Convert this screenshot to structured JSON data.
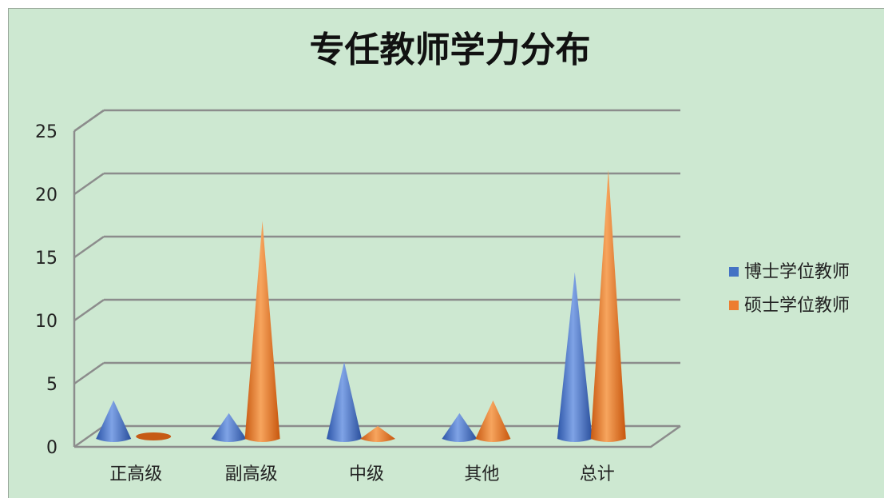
{
  "chart_data": {
    "type": "bar",
    "title": "专任教师学力分布",
    "categories": [
      "正高级",
      "副高级",
      "中级",
      "其他",
      "总计"
    ],
    "series": [
      {
        "name": "博士学位教师",
        "values": [
          3,
          2,
          6,
          2,
          13
        ],
        "color": "#4472c4"
      },
      {
        "name": "硕士学位教师",
        "values": [
          0,
          17,
          1,
          3,
          21
        ],
        "color": "#ed7d31"
      }
    ],
    "ylim": [
      0,
      25
    ],
    "yticks": [
      0,
      5,
      10,
      15,
      20,
      25
    ],
    "grid": true,
    "legend_position": "right",
    "style": "3d-cone"
  }
}
